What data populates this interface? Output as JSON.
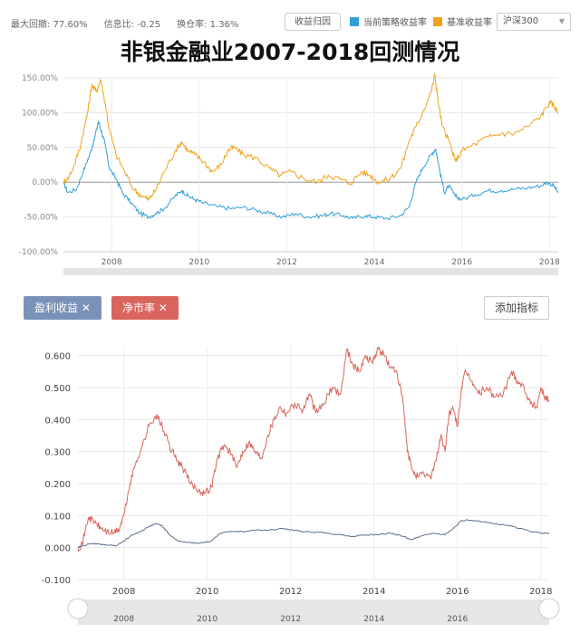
{
  "stats": {
    "max_drawdown": "最大回撤: 77.60%",
    "info_ratio": "信息比: -0.25",
    "turnover": "换仓率: 1.36%"
  },
  "buttons": {
    "revenue_attribution": "收益归因",
    "add_indicator": "添加指标"
  },
  "legend": {
    "strategy_label": "当前策略收益率",
    "benchmark_label": "基准收益率",
    "strategy_color": "#2e9fd8",
    "benchmark_color": "#f0a31c"
  },
  "benchmark_select": "沪深300",
  "title": "非银金融业2007-2018回测情况",
  "tags": [
    {
      "label": "盈利收益 ✕",
      "color": "#7b92b8"
    },
    {
      "label": "净市率 ✕",
      "color": "#d9655c"
    }
  ],
  "chart_data": [
    {
      "type": "line",
      "title": "",
      "ylim": [
        -100,
        150
      ],
      "y_tick_labels": [
        "150.00%",
        "100.00%",
        "50.00%",
        "0.00%",
        "-50.00%",
        "-100.00%"
      ],
      "x_tick_labels": [
        "2008",
        "2010",
        "2012",
        "2014",
        "2016",
        "2018"
      ],
      "x_range": [
        2006.9,
        2018.2
      ],
      "grid": true,
      "series": [
        {
          "name": "当前策略收益率",
          "color": "#2e9fd8",
          "points": [
            [
              2006.9,
              0
            ],
            [
              2007.0,
              -15
            ],
            [
              2007.2,
              -10
            ],
            [
              2007.35,
              15
            ],
            [
              2007.5,
              40
            ],
            [
              2007.6,
              60
            ],
            [
              2007.7,
              88
            ],
            [
              2007.78,
              70
            ],
            [
              2007.85,
              55
            ],
            [
              2007.95,
              20
            ],
            [
              2008.1,
              5
            ],
            [
              2008.25,
              -15
            ],
            [
              2008.45,
              -30
            ],
            [
              2008.65,
              -45
            ],
            [
              2008.85,
              -50
            ],
            [
              2009.0,
              -45
            ],
            [
              2009.2,
              -38
            ],
            [
              2009.45,
              -20
            ],
            [
              2009.6,
              -12
            ],
            [
              2009.75,
              -20
            ],
            [
              2009.9,
              -25
            ],
            [
              2010.1,
              -30
            ],
            [
              2010.4,
              -35
            ],
            [
              2010.7,
              -38
            ],
            [
              2011.0,
              -36
            ],
            [
              2011.3,
              -40
            ],
            [
              2011.6,
              -45
            ],
            [
              2011.9,
              -50
            ],
            [
              2012.2,
              -45
            ],
            [
              2012.5,
              -50
            ],
            [
              2012.8,
              -48
            ],
            [
              2013.0,
              -45
            ],
            [
              2013.3,
              -48
            ],
            [
              2013.5,
              -52
            ],
            [
              2013.8,
              -48
            ],
            [
              2014.0,
              -50
            ],
            [
              2014.3,
              -52
            ],
            [
              2014.6,
              -48
            ],
            [
              2014.8,
              -35
            ],
            [
              2014.95,
              0
            ],
            [
              2015.1,
              20
            ],
            [
              2015.3,
              40
            ],
            [
              2015.4,
              48
            ],
            [
              2015.5,
              15
            ],
            [
              2015.6,
              -15
            ],
            [
              2015.7,
              -5
            ],
            [
              2015.85,
              -20
            ],
            [
              2016.0,
              -25
            ],
            [
              2016.3,
              -18
            ],
            [
              2016.6,
              -12
            ],
            [
              2016.9,
              -12
            ],
            [
              2017.2,
              -10
            ],
            [
              2017.5,
              -8
            ],
            [
              2017.8,
              -5
            ],
            [
              2017.95,
              0
            ],
            [
              2018.1,
              -5
            ],
            [
              2018.2,
              -15
            ]
          ]
        },
        {
          "name": "基准收益率",
          "color": "#f0a31c",
          "points": [
            [
              2006.9,
              0
            ],
            [
              2007.0,
              5
            ],
            [
              2007.15,
              25
            ],
            [
              2007.3,
              55
            ],
            [
              2007.45,
              100
            ],
            [
              2007.55,
              140
            ],
            [
              2007.65,
              130
            ],
            [
              2007.75,
              148
            ],
            [
              2007.85,
              115
            ],
            [
              2007.95,
              75
            ],
            [
              2008.1,
              40
            ],
            [
              2008.3,
              15
            ],
            [
              2008.5,
              -10
            ],
            [
              2008.7,
              -20
            ],
            [
              2008.85,
              -25
            ],
            [
              2009.0,
              -12
            ],
            [
              2009.2,
              15
            ],
            [
              2009.45,
              45
            ],
            [
              2009.6,
              58
            ],
            [
              2009.75,
              45
            ],
            [
              2009.9,
              40
            ],
            [
              2010.1,
              30
            ],
            [
              2010.3,
              15
            ],
            [
              2010.5,
              25
            ],
            [
              2010.65,
              45
            ],
            [
              2010.8,
              50
            ],
            [
              2011.0,
              40
            ],
            [
              2011.3,
              35
            ],
            [
              2011.6,
              20
            ],
            [
              2011.85,
              10
            ],
            [
              2012.1,
              15
            ],
            [
              2012.4,
              5
            ],
            [
              2012.7,
              0
            ],
            [
              2012.95,
              10
            ],
            [
              2013.2,
              5
            ],
            [
              2013.45,
              -2
            ],
            [
              2013.7,
              15
            ],
            [
              2013.9,
              10
            ],
            [
              2014.1,
              0
            ],
            [
              2014.35,
              5
            ],
            [
              2014.6,
              20
            ],
            [
              2014.8,
              60
            ],
            [
              2014.95,
              80
            ],
            [
              2015.1,
              100
            ],
            [
              2015.3,
              130
            ],
            [
              2015.38,
              155
            ],
            [
              2015.45,
              120
            ],
            [
              2015.55,
              80
            ],
            [
              2015.7,
              60
            ],
            [
              2015.85,
              30
            ],
            [
              2016.0,
              45
            ],
            [
              2016.3,
              55
            ],
            [
              2016.6,
              65
            ],
            [
              2016.9,
              70
            ],
            [
              2017.2,
              70
            ],
            [
              2017.5,
              80
            ],
            [
              2017.8,
              95
            ],
            [
              2018.0,
              115
            ],
            [
              2018.1,
              110
            ],
            [
              2018.2,
              100
            ]
          ]
        }
      ]
    },
    {
      "type": "line",
      "title": "",
      "ylim": [
        -0.1,
        0.63
      ],
      "y_tick_labels": [
        "0.600",
        "0.500",
        "0.400",
        "0.300",
        "0.200",
        "0.100",
        "0.000",
        "-0.100"
      ],
      "x_tick_labels": [
        "2008",
        "2010",
        "2012",
        "2014",
        "2016",
        "2018"
      ],
      "navigator_labels": [
        "2008",
        "2010",
        "2012",
        "2014",
        "2016"
      ],
      "x_range": [
        2006.9,
        2018.2
      ],
      "grid": true,
      "series": [
        {
          "name": "净市率",
          "color": "#d9655c",
          "points": [
            [
              2006.9,
              0.0
            ],
            [
              2007.0,
              0.01
            ],
            [
              2007.15,
              0.095
            ],
            [
              2007.3,
              0.08
            ],
            [
              2007.45,
              0.06
            ],
            [
              2007.6,
              0.05
            ],
            [
              2007.75,
              0.045
            ],
            [
              2007.9,
              0.06
            ],
            [
              2008.0,
              0.1
            ],
            [
              2008.15,
              0.2
            ],
            [
              2008.3,
              0.27
            ],
            [
              2008.45,
              0.32
            ],
            [
              2008.6,
              0.38
            ],
            [
              2008.75,
              0.41
            ],
            [
              2008.85,
              0.4
            ],
            [
              2009.0,
              0.35
            ],
            [
              2009.15,
              0.3
            ],
            [
              2009.3,
              0.27
            ],
            [
              2009.45,
              0.24
            ],
            [
              2009.6,
              0.2
            ],
            [
              2009.8,
              0.18
            ],
            [
              2009.95,
              0.17
            ],
            [
              2010.1,
              0.19
            ],
            [
              2010.25,
              0.28
            ],
            [
              2010.4,
              0.32
            ],
            [
              2010.55,
              0.3
            ],
            [
              2010.7,
              0.25
            ],
            [
              2010.85,
              0.3
            ],
            [
              2011.0,
              0.33
            ],
            [
              2011.15,
              0.3
            ],
            [
              2011.3,
              0.28
            ],
            [
              2011.45,
              0.35
            ],
            [
              2011.6,
              0.4
            ],
            [
              2011.75,
              0.44
            ],
            [
              2011.9,
              0.42
            ],
            [
              2012.1,
              0.45
            ],
            [
              2012.3,
              0.43
            ],
            [
              2012.45,
              0.48
            ],
            [
              2012.6,
              0.42
            ],
            [
              2012.8,
              0.45
            ],
            [
              2013.0,
              0.5
            ],
            [
              2013.2,
              0.48
            ],
            [
              2013.35,
              0.62
            ],
            [
              2013.5,
              0.57
            ],
            [
              2013.65,
              0.55
            ],
            [
              2013.8,
              0.6
            ],
            [
              2013.95,
              0.58
            ],
            [
              2014.1,
              0.62
            ],
            [
              2014.25,
              0.6
            ],
            [
              2014.4,
              0.56
            ],
            [
              2014.55,
              0.55
            ],
            [
              2014.7,
              0.45
            ],
            [
              2014.8,
              0.3
            ],
            [
              2014.9,
              0.25
            ],
            [
              2015.05,
              0.22
            ],
            [
              2015.2,
              0.23
            ],
            [
              2015.35,
              0.22
            ],
            [
              2015.5,
              0.28
            ],
            [
              2015.6,
              0.35
            ],
            [
              2015.7,
              0.3
            ],
            [
              2015.8,
              0.42
            ],
            [
              2015.9,
              0.43
            ],
            [
              2016.0,
              0.38
            ],
            [
              2016.1,
              0.5
            ],
            [
              2016.2,
              0.55
            ],
            [
              2016.35,
              0.52
            ],
            [
              2016.5,
              0.48
            ],
            [
              2016.7,
              0.5
            ],
            [
              2016.9,
              0.47
            ],
            [
              2017.1,
              0.48
            ],
            [
              2017.3,
              0.55
            ],
            [
              2017.45,
              0.52
            ],
            [
              2017.6,
              0.5
            ],
            [
              2017.75,
              0.45
            ],
            [
              2017.9,
              0.44
            ],
            [
              2018.0,
              0.5
            ],
            [
              2018.1,
              0.47
            ],
            [
              2018.2,
              0.46
            ]
          ]
        },
        {
          "name": "盈利收益",
          "color": "#5a6e8e",
          "points": [
            [
              2006.9,
              0.0
            ],
            [
              2007.0,
              0.005
            ],
            [
              2007.2,
              0.012
            ],
            [
              2007.4,
              0.012
            ],
            [
              2007.6,
              0.008
            ],
            [
              2007.8,
              0.005
            ],
            [
              2008.0,
              0.02
            ],
            [
              2008.2,
              0.04
            ],
            [
              2008.4,
              0.05
            ],
            [
              2008.6,
              0.065
            ],
            [
              2008.75,
              0.075
            ],
            [
              2008.9,
              0.07
            ],
            [
              2009.1,
              0.04
            ],
            [
              2009.3,
              0.02
            ],
            [
              2009.6,
              0.015
            ],
            [
              2009.9,
              0.015
            ],
            [
              2010.1,
              0.02
            ],
            [
              2010.3,
              0.045
            ],
            [
              2010.6,
              0.05
            ],
            [
              2010.9,
              0.05
            ],
            [
              2011.2,
              0.055
            ],
            [
              2011.5,
              0.055
            ],
            [
              2011.8,
              0.06
            ],
            [
              2012.0,
              0.055
            ],
            [
              2012.3,
              0.05
            ],
            [
              2012.6,
              0.048
            ],
            [
              2012.9,
              0.045
            ],
            [
              2013.2,
              0.04
            ],
            [
              2013.5,
              0.035
            ],
            [
              2013.8,
              0.04
            ],
            [
              2014.1,
              0.04
            ],
            [
              2014.4,
              0.045
            ],
            [
              2014.7,
              0.035
            ],
            [
              2014.9,
              0.025
            ],
            [
              2015.1,
              0.035
            ],
            [
              2015.4,
              0.045
            ],
            [
              2015.7,
              0.04
            ],
            [
              2015.9,
              0.06
            ],
            [
              2016.1,
              0.085
            ],
            [
              2016.3,
              0.085
            ],
            [
              2016.6,
              0.08
            ],
            [
              2016.9,
              0.075
            ],
            [
              2017.2,
              0.07
            ],
            [
              2017.5,
              0.06
            ],
            [
              2017.8,
              0.05
            ],
            [
              2018.0,
              0.045
            ],
            [
              2018.2,
              0.045
            ]
          ]
        }
      ]
    }
  ]
}
